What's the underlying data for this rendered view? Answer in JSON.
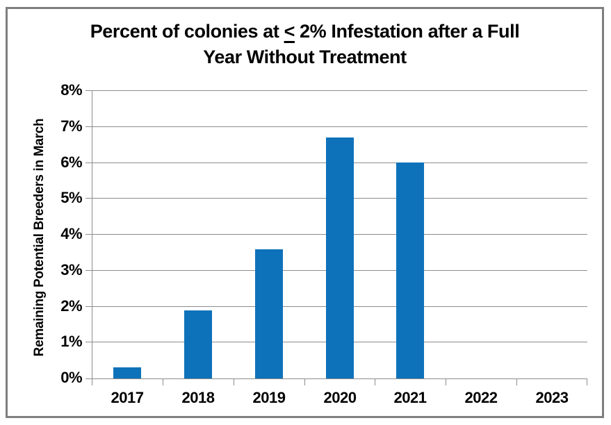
{
  "chart_data": {
    "type": "bar",
    "title": {
      "line1_pre": "Percent of colonies at ",
      "line1_le_symbol": "<",
      "line1_post": " 2% Infestation after a Full",
      "line2": "Year Without Treatment"
    },
    "categories": [
      "2017",
      "2018",
      "2019",
      "2020",
      "2021",
      "2022",
      "2023"
    ],
    "values": [
      0.3,
      1.9,
      3.6,
      6.7,
      6.0,
      0,
      0
    ],
    "xlabel": "",
    "ylabel": "Remaining Potential Breeders in March",
    "ylim": [
      0,
      8
    ],
    "ytick_step": 1,
    "ytick_labels": [
      "0%",
      "1%",
      "2%",
      "3%",
      "4%",
      "5%",
      "6%",
      "7%",
      "8%"
    ],
    "grid": true,
    "legend_position": "none",
    "bar_color": "#0e72ba",
    "axis_color": "#8c8c8c",
    "text_color": "#000000"
  }
}
